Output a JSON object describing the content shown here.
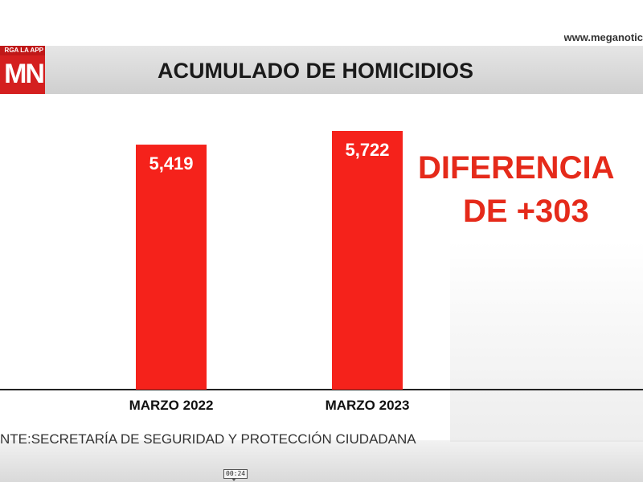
{
  "header": {
    "app_strip": "RGA LA APP",
    "logo": "MN",
    "url": "www.meganotic"
  },
  "chart_data": {
    "type": "bar",
    "title": "ACUMULADO DE HOMICIDIOS",
    "categories": [
      "MARZO 2022",
      "MARZO 2023"
    ],
    "values": [
      5419,
      5722
    ],
    "value_labels": [
      "5,419",
      "5,722"
    ],
    "ylim": [
      0,
      5722
    ],
    "grid": false,
    "legend": false,
    "bar_color": "#f5221b",
    "annotation": [
      "DIFERENCIA",
      "DE +303"
    ]
  },
  "source": "NTE:SECRETARÍA DE SEGURIDAD Y PROTECCIÓN CIUDADANA",
  "player": {
    "timestamp": "00:24"
  },
  "colors": {
    "accent": "#f5221b",
    "annotation": "#e52a1a",
    "header": "#d8d8d8"
  }
}
